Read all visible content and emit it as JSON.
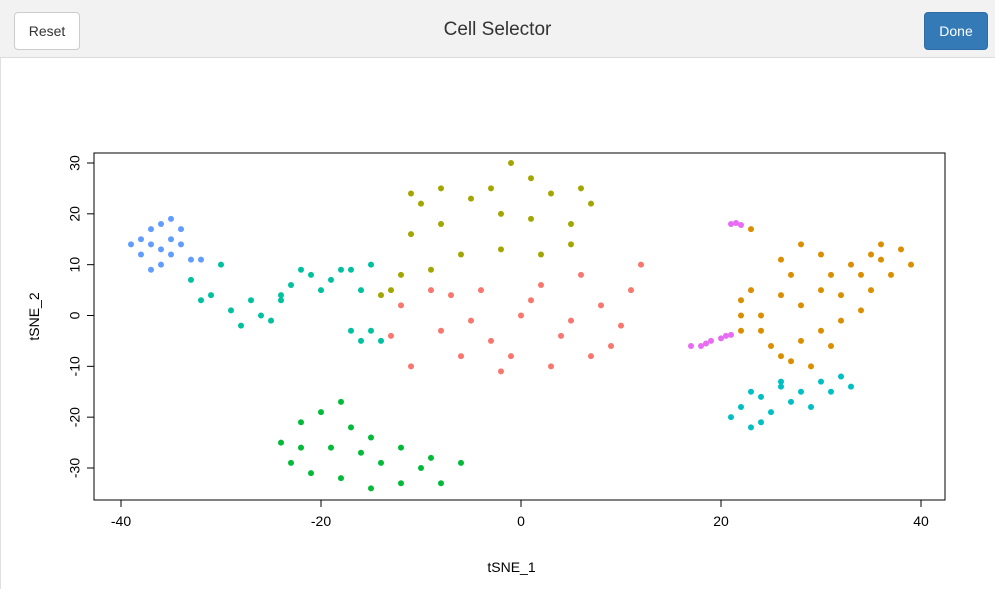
{
  "header": {
    "title": "Cell Selector",
    "reset_label": "Reset",
    "done_label": "Done"
  },
  "chart_data": {
    "type": "scatter",
    "xlabel": "tSNE_1",
    "ylabel": "tSNE_2",
    "xlim": [
      -40,
      40
    ],
    "ylim": [
      -36,
      30.5
    ],
    "x_ticks": [
      "-40",
      "-20",
      "0",
      "20",
      "40"
    ],
    "y_ticks": [
      "-30",
      "-20",
      "-10",
      "0",
      "10",
      "20",
      "30"
    ],
    "grid": false,
    "legend": "none",
    "series": [
      {
        "color": "#F8766D",
        "points": [
          [
            0,
            0
          ],
          [
            -8,
            -3
          ],
          [
            -11,
            -10
          ],
          [
            -6,
            -8
          ],
          [
            -2,
            -11
          ],
          [
            3,
            -10
          ],
          [
            7,
            -8
          ],
          [
            10,
            -2
          ],
          [
            11,
            5
          ],
          [
            6,
            8
          ],
          [
            2,
            6
          ],
          [
            -4,
            5
          ],
          [
            -7,
            4
          ],
          [
            -12,
            2
          ],
          [
            -13,
            -4
          ],
          [
            -9,
            5
          ],
          [
            -3,
            -5
          ],
          [
            4,
            -4
          ],
          [
            8,
            2
          ],
          [
            1,
            3
          ],
          [
            -5,
            -1
          ],
          [
            5,
            -1
          ],
          [
            -1,
            -8
          ],
          [
            9,
            -6
          ],
          [
            12,
            10
          ]
        ]
      },
      {
        "color": "#A3A500",
        "points": [
          [
            -12,
            8
          ],
          [
            -11,
            16
          ],
          [
            -10,
            22
          ],
          [
            -8,
            25
          ],
          [
            -5,
            23
          ],
          [
            -2,
            20
          ],
          [
            1,
            27
          ],
          [
            -1,
            30
          ],
          [
            3,
            24
          ],
          [
            5,
            18
          ],
          [
            6,
            25
          ],
          [
            7,
            22
          ],
          [
            5,
            14
          ],
          [
            2,
            12
          ],
          [
            -2,
            13
          ],
          [
            -6,
            12
          ],
          [
            -9,
            9
          ],
          [
            -13,
            5
          ],
          [
            -14,
            4
          ],
          [
            -11,
            24
          ],
          [
            -3,
            25
          ],
          [
            1,
            19
          ],
          [
            -8,
            18
          ]
        ]
      },
      {
        "color": "#00BA38",
        "points": [
          [
            -24,
            -25
          ],
          [
            -22,
            -21
          ],
          [
            -20,
            -19
          ],
          [
            -18,
            -17
          ],
          [
            -17,
            -22
          ],
          [
            -15,
            -24
          ],
          [
            -12,
            -26
          ],
          [
            -9,
            -28
          ],
          [
            -6,
            -29
          ],
          [
            -8,
            -33
          ],
          [
            -12,
            -33
          ],
          [
            -15,
            -34
          ],
          [
            -18,
            -32
          ],
          [
            -21,
            -31
          ],
          [
            -23,
            -29
          ],
          [
            -19,
            -26
          ],
          [
            -14,
            -29
          ],
          [
            -10,
            -30
          ],
          [
            -16,
            -27
          ],
          [
            -22,
            -26
          ]
        ]
      },
      {
        "color": "#00BFC4",
        "points": [
          [
            21,
            -20
          ],
          [
            22,
            -18
          ],
          [
            23,
            -22
          ],
          [
            24,
            -16
          ],
          [
            25,
            -19
          ],
          [
            26,
            -14
          ],
          [
            28,
            -15
          ],
          [
            30,
            -13
          ],
          [
            32,
            -12
          ],
          [
            33,
            -14
          ],
          [
            29,
            -18
          ],
          [
            27,
            -17
          ],
          [
            24,
            -21
          ],
          [
            26,
            -13
          ],
          [
            31,
            -15
          ],
          [
            23,
            -15
          ]
        ]
      },
      {
        "color": "#00C19F",
        "points": [
          [
            -33,
            7
          ],
          [
            -32,
            3
          ],
          [
            -31,
            4
          ],
          [
            -29,
            1
          ],
          [
            -28,
            -2
          ],
          [
            -27,
            3
          ],
          [
            -26,
            0
          ],
          [
            -25,
            -1
          ],
          [
            -24,
            4
          ],
          [
            -23,
            6
          ],
          [
            -22,
            9
          ],
          [
            -21,
            8
          ],
          [
            -20,
            5
          ],
          [
            -19,
            7
          ],
          [
            -18,
            9
          ],
          [
            -17,
            9
          ],
          [
            -16,
            5
          ],
          [
            -15,
            10
          ],
          [
            -17,
            -3
          ],
          [
            -16,
            -5
          ],
          [
            -15,
            -3
          ],
          [
            -14,
            -5
          ],
          [
            -30,
            10
          ],
          [
            -24,
            3
          ]
        ]
      },
      {
        "color": "#619CFF",
        "points": [
          [
            -39,
            14
          ],
          [
            -38,
            15
          ],
          [
            -37,
            17
          ],
          [
            -36,
            18
          ],
          [
            -35,
            19
          ],
          [
            -34,
            17
          ],
          [
            -34,
            14
          ],
          [
            -35,
            12
          ],
          [
            -36,
            10
          ],
          [
            -37,
            9
          ],
          [
            -36,
            13
          ],
          [
            -38,
            12
          ],
          [
            -33,
            11
          ],
          [
            -32,
            11
          ],
          [
            -35,
            15
          ],
          [
            -37,
            14
          ]
        ]
      },
      {
        "color": "#DB8E00",
        "points": [
          [
            22,
            0
          ],
          [
            22,
            3
          ],
          [
            23,
            5
          ],
          [
            24,
            -3
          ],
          [
            25,
            -6
          ],
          [
            26,
            -8
          ],
          [
            27,
            -9
          ],
          [
            28,
            -5
          ],
          [
            28,
            2
          ],
          [
            27,
            8
          ],
          [
            26,
            11
          ],
          [
            28,
            14
          ],
          [
            30,
            12
          ],
          [
            31,
            8
          ],
          [
            32,
            4
          ],
          [
            32,
            -1
          ],
          [
            30,
            -3
          ],
          [
            33,
            10
          ],
          [
            35,
            12
          ],
          [
            36,
            14
          ],
          [
            38,
            13
          ],
          [
            39,
            10
          ],
          [
            37,
            8
          ],
          [
            35,
            5
          ],
          [
            34,
            1
          ],
          [
            31,
            -6
          ],
          [
            29,
            -10
          ],
          [
            24,
            0
          ],
          [
            26,
            4
          ],
          [
            30,
            5
          ],
          [
            34,
            8
          ],
          [
            36,
            11
          ],
          [
            22,
            -3
          ],
          [
            23,
            17
          ]
        ]
      },
      {
        "color": "#E76BF3",
        "points": [
          [
            17,
            -6
          ],
          [
            18,
            -6
          ],
          [
            18.5,
            -5.5
          ],
          [
            19,
            -5
          ],
          [
            20,
            -4.5
          ],
          [
            20.5,
            -4
          ],
          [
            21,
            -3.8
          ],
          [
            21,
            18
          ],
          [
            21.5,
            18.2
          ],
          [
            22,
            17.8
          ]
        ]
      }
    ]
  }
}
